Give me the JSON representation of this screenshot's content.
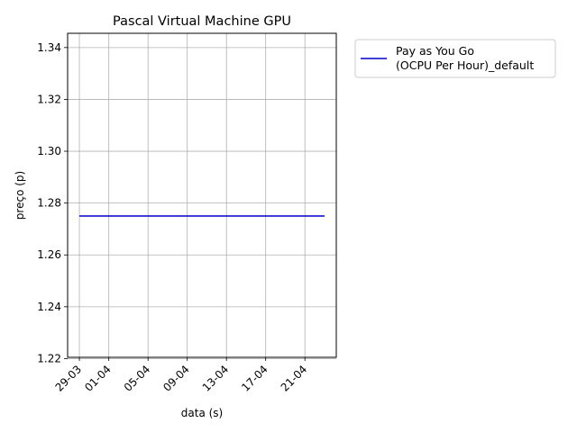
{
  "chart_data": {
    "type": "line",
    "title": "Pascal Virtual Machine GPU",
    "xlabel": "data (s)",
    "ylabel": "preço (p)",
    "x_tick_labels": [
      "29-03",
      "01-04",
      "05-04",
      "09-04",
      "13-04",
      "17-04",
      "21-04"
    ],
    "x_tick_days": [
      0,
      3,
      7,
      11,
      15,
      19,
      23
    ],
    "xlim": [
      -1.2,
      26.2
    ],
    "ylim": [
      1.2205,
      1.3455
    ],
    "y_ticks": [
      1.22,
      1.24,
      1.26,
      1.28,
      1.3,
      1.32,
      1.34
    ],
    "y_tick_labels": [
      "1.22",
      "1.24",
      "1.26",
      "1.28",
      "1.30",
      "1.32",
      "1.34"
    ],
    "grid": true,
    "legend_position": "outside-right-top",
    "series": [
      {
        "name": "Pay as You Go\n(OCPU Per Hour)_default",
        "name_lines": [
          "Pay as You Go",
          "(OCPU Per Hour)_default"
        ],
        "color": "#0000cc",
        "x_days": [
          0,
          25
        ],
        "values": [
          1.275,
          1.275
        ]
      }
    ]
  }
}
